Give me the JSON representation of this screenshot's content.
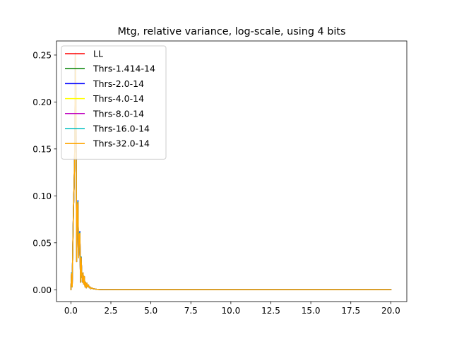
{
  "chart_data": {
    "type": "line",
    "title": "Mtg, relative variance, log-scale, using 4 bits",
    "xlabel": "",
    "ylabel": "",
    "xlim": [
      -0.9,
      21.0
    ],
    "ylim": [
      -0.0126,
      0.265
    ],
    "xticks": [
      0.0,
      2.5,
      5.0,
      7.5,
      10.0,
      12.5,
      15.0,
      17.5,
      20.0
    ],
    "xtick_labels": [
      "0.0",
      "2.5",
      "5.0",
      "7.5",
      "10.0",
      "12.5",
      "15.0",
      "17.5",
      "20.0"
    ],
    "yticks": [
      0.0,
      0.05,
      0.1,
      0.15,
      0.2,
      0.25
    ],
    "ytick_labels": [
      "0.00",
      "0.05",
      "0.10",
      "0.15",
      "0.20",
      "0.25"
    ],
    "grid": false,
    "legend_position": "upper-left",
    "x": [
      0.0,
      0.04,
      0.08,
      0.12,
      0.16,
      0.2,
      0.24,
      0.28,
      0.32,
      0.36,
      0.4,
      0.44,
      0.48,
      0.52,
      0.56,
      0.6,
      0.64,
      0.68,
      0.72,
      0.76,
      0.8,
      0.84,
      0.88,
      0.92,
      0.96,
      1.0,
      1.05,
      1.1,
      1.15,
      1.2,
      1.25,
      1.3,
      1.4,
      1.5,
      1.6,
      1.8,
      2.0,
      3.0,
      5.0,
      8.0,
      12.0,
      16.0,
      20.0
    ],
    "series": [
      {
        "name": "LL",
        "color": "#ff0000",
        "values": [
          0.0,
          0.018,
          0.003,
          0.047,
          0.085,
          0.11,
          0.148,
          0.252,
          0.2,
          0.03,
          0.09,
          0.094,
          0.035,
          0.06,
          0.061,
          0.008,
          0.035,
          0.016,
          0.008,
          0.018,
          0.006,
          0.014,
          0.003,
          0.008,
          0.002,
          0.007,
          0.003,
          0.005,
          0.002,
          0.003,
          0.001,
          0.002,
          0.001,
          0.0008,
          0.0005,
          0.0003,
          0.0002,
          0.0001,
          0.0001,
          0.0001,
          0.0001,
          0.0001,
          0.0001
        ]
      },
      {
        "name": "Thrs-1.414-14",
        "color": "#008000",
        "values": [
          0.0,
          0.018,
          0.003,
          0.047,
          0.085,
          0.11,
          0.148,
          0.252,
          0.2,
          0.03,
          0.09,
          0.094,
          0.035,
          0.06,
          0.061,
          0.008,
          0.035,
          0.016,
          0.008,
          0.018,
          0.006,
          0.014,
          0.003,
          0.008,
          0.002,
          0.007,
          0.003,
          0.005,
          0.002,
          0.003,
          0.001,
          0.002,
          0.001,
          0.0008,
          0.0005,
          0.0003,
          0.0002,
          0.0001,
          0.0001,
          0.0001,
          0.0001,
          0.0001,
          0.0001
        ]
      },
      {
        "name": "Thrs-2.0-14",
        "color": "#0000ff",
        "values": [
          0.0,
          0.018,
          0.003,
          0.047,
          0.085,
          0.11,
          0.148,
          0.252,
          0.2,
          0.03,
          0.09,
          0.095,
          0.035,
          0.06,
          0.062,
          0.008,
          0.035,
          0.016,
          0.008,
          0.018,
          0.006,
          0.014,
          0.003,
          0.008,
          0.002,
          0.007,
          0.003,
          0.005,
          0.002,
          0.003,
          0.001,
          0.002,
          0.001,
          0.0008,
          0.0005,
          0.0003,
          0.0002,
          0.0001,
          0.0001,
          0.0001,
          0.0001,
          0.0001,
          0.0001
        ]
      },
      {
        "name": "Thrs-4.0-14",
        "color": "#ffff00",
        "values": [
          0.0,
          0.018,
          0.003,
          0.047,
          0.085,
          0.11,
          0.148,
          0.252,
          0.2,
          0.03,
          0.09,
          0.094,
          0.035,
          0.06,
          0.061,
          0.008,
          0.035,
          0.016,
          0.008,
          0.018,
          0.006,
          0.014,
          0.003,
          0.008,
          0.002,
          0.007,
          0.003,
          0.005,
          0.002,
          0.003,
          0.001,
          0.002,
          0.001,
          0.0008,
          0.0005,
          0.0003,
          0.0002,
          0.0001,
          0.0001,
          0.0001,
          0.0001,
          0.0001,
          0.0001
        ]
      },
      {
        "name": "Thrs-8.0-14",
        "color": "#bf00bf",
        "values": [
          0.0,
          0.018,
          0.003,
          0.047,
          0.085,
          0.11,
          0.148,
          0.252,
          0.2,
          0.03,
          0.09,
          0.094,
          0.035,
          0.06,
          0.061,
          0.008,
          0.035,
          0.016,
          0.008,
          0.018,
          0.006,
          0.014,
          0.003,
          0.008,
          0.002,
          0.007,
          0.003,
          0.005,
          0.002,
          0.003,
          0.001,
          0.002,
          0.001,
          0.0008,
          0.0005,
          0.0003,
          0.0002,
          0.0001,
          0.0001,
          0.0001,
          0.0001,
          0.0001,
          0.0001
        ]
      },
      {
        "name": "Thrs-16.0-14",
        "color": "#00bfbf",
        "values": [
          0.0,
          0.018,
          0.003,
          0.047,
          0.085,
          0.11,
          0.148,
          0.252,
          0.2,
          0.03,
          0.09,
          0.094,
          0.035,
          0.06,
          0.061,
          0.008,
          0.035,
          0.016,
          0.008,
          0.018,
          0.006,
          0.014,
          0.003,
          0.008,
          0.002,
          0.007,
          0.003,
          0.005,
          0.002,
          0.003,
          0.001,
          0.002,
          0.001,
          0.0008,
          0.0005,
          0.0003,
          0.0002,
          0.0001,
          0.0001,
          0.0001,
          0.0001,
          0.0001,
          0.0001
        ]
      },
      {
        "name": "Thrs-32.0-14",
        "color": "#ffa500",
        "values": [
          0.0,
          0.017,
          0.003,
          0.046,
          0.084,
          0.109,
          0.147,
          0.25,
          0.198,
          0.03,
          0.089,
          0.093,
          0.034,
          0.059,
          0.06,
          0.008,
          0.034,
          0.016,
          0.008,
          0.018,
          0.006,
          0.014,
          0.003,
          0.008,
          0.002,
          0.007,
          0.003,
          0.005,
          0.002,
          0.003,
          0.001,
          0.002,
          0.001,
          0.0008,
          0.0005,
          0.0003,
          0.0002,
          0.0001,
          0.0001,
          0.0001,
          0.0001,
          0.0001,
          0.0001
        ]
      }
    ]
  }
}
